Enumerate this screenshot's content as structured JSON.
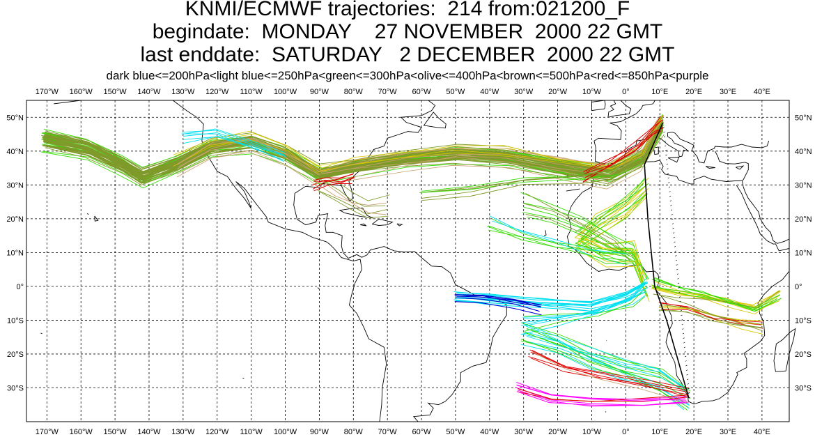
{
  "title_line1": "KNMI/ECMWF trajectories:  214 from:021200_F",
  "title_line2": "begindate:  MONDAY    27 NOVEMBER  2000 22 GMT",
  "title_line3": "last enddate:  SATURDAY   2 DECEMBER  2000 22 GMT",
  "legend": "dark blue<=200hPa<light blue<=250hPa<green<=300hPa<olive<=400hPa<brown<=500hPa<red<=850hPa<purple",
  "colors": {
    "dark_blue": "#0000cc",
    "light_blue": "#00e0f0",
    "green": "#33dd00",
    "olive": "#7f9a2a",
    "yellow": "#d8c800",
    "brown": "#c8a070",
    "red": "#e00000",
    "purple": "#ff00ff",
    "coast": "#000000",
    "grid": "#000000"
  },
  "map_data": {
    "lon_range": [
      -176,
      48
    ],
    "lat_range": [
      -40,
      55
    ],
    "lon_ticks": [
      "170°W",
      "160°W",
      "150°W",
      "140°W",
      "130°W",
      "120°W",
      "110°W",
      "100°W",
      "90°W",
      "80°W",
      "70°W",
      "60°W",
      "50°W",
      "40°W",
      "30°W",
      "20°W",
      "10°W",
      "0°",
      "10°E",
      "20°E",
      "30°E",
      "40°E"
    ],
    "lon_tick_values": [
      -170,
      -160,
      -150,
      -140,
      -130,
      -120,
      -110,
      -100,
      -90,
      -80,
      -70,
      -60,
      -50,
      -40,
      -30,
      -20,
      -10,
      0,
      10,
      20,
      30,
      40
    ],
    "lat_ticks": [
      "50°N",
      "40°N",
      "30°N",
      "20°N",
      "10°N",
      "0°",
      "10°S",
      "20°S",
      "30°S"
    ],
    "lat_tick_values": [
      50,
      40,
      30,
      20,
      10,
      0,
      -10,
      -20,
      -30
    ],
    "grid": "dashed",
    "endpoints": [
      [
        10.8,
        48.2
      ],
      [
        18.5,
        -33.0
      ]
    ]
  }
}
